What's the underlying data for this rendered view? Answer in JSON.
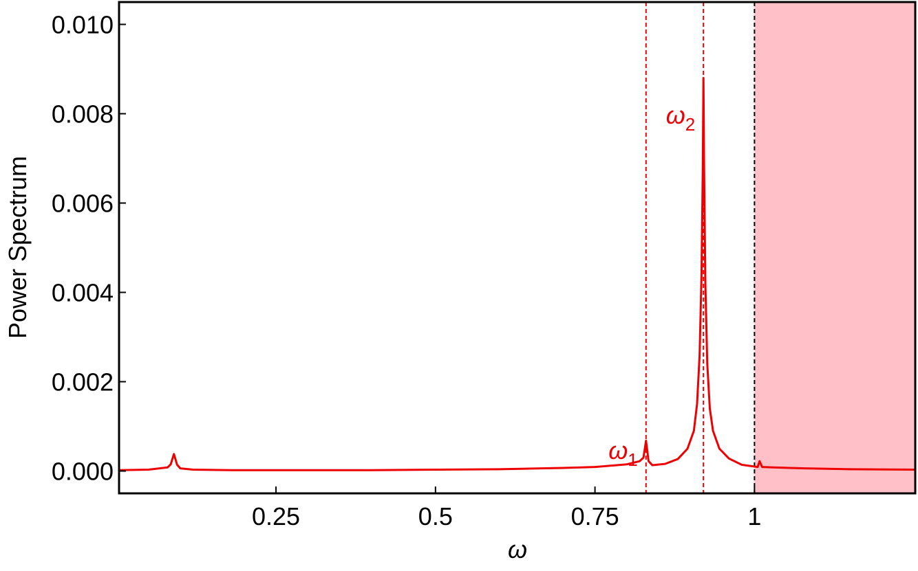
{
  "chart_data": {
    "type": "line",
    "x_label": "ω",
    "y_label": "Power Spectrum",
    "color": "#ee0000",
    "xlim": [
      0.004,
      1.252
    ],
    "ylim": [
      -0.0005,
      0.0105
    ],
    "xticks": [
      0.25,
      0.5,
      0.75,
      1
    ],
    "yticks": [
      {
        "value": 0,
        "label": "0.000"
      },
      {
        "value": 0.002,
        "label": "0.002"
      },
      {
        "value": 0.004,
        "label": "0.004"
      },
      {
        "value": 0.006,
        "label": "0.006"
      },
      {
        "value": 0.008,
        "label": "0.008"
      },
      {
        "value": 0.01,
        "label": "0.010"
      }
    ],
    "shade": {
      "from": 1,
      "to": 1.252,
      "color": "#ffc0c7"
    },
    "vlines": [
      {
        "x": 0.83,
        "color": "#ee0000",
        "label": "ω",
        "subscript": "1"
      },
      {
        "x": 0.92,
        "color": "#ee0000",
        "label": "ω",
        "subscript": "2"
      },
      {
        "x": 1,
        "color": "#000000"
      }
    ],
    "x": [
      0.004,
      0.05,
      0.08,
      0.085,
      0.09,
      0.095,
      0.1,
      0.12,
      0.18,
      0.3,
      0.4,
      0.5,
      0.6,
      0.7,
      0.75,
      0.8,
      0.82,
      0.826,
      0.83,
      0.834,
      0.84,
      0.86,
      0.88,
      0.895,
      0.905,
      0.91,
      0.914,
      0.917,
      0.919,
      0.92,
      0.921,
      0.923,
      0.926,
      0.93,
      0.935,
      0.945,
      0.96,
      0.98,
      1.0,
      1.005,
      1.008,
      1.012,
      1.03,
      1.08,
      1.15,
      1.252
    ],
    "values": [
      2e-05,
      3e-05,
      8e-05,
      0.00015,
      0.00038,
      0.00014,
      6e-05,
      3e-05,
      2e-05,
      2e-05,
      2e-05,
      3e-05,
      4e-05,
      7e-05,
      9e-05,
      0.00015,
      0.00022,
      0.0003,
      0.00068,
      0.00022,
      0.00013,
      0.00016,
      0.00027,
      0.0005,
      0.0009,
      0.0015,
      0.0026,
      0.0044,
      0.0068,
      0.0088,
      0.0068,
      0.0042,
      0.0024,
      0.0014,
      0.0009,
      0.0005,
      0.00028,
      0.00014,
      0.0001,
      9e-05,
      0.00022,
      9e-05,
      8e-05,
      6e-05,
      4e-05,
      3e-05
    ]
  }
}
